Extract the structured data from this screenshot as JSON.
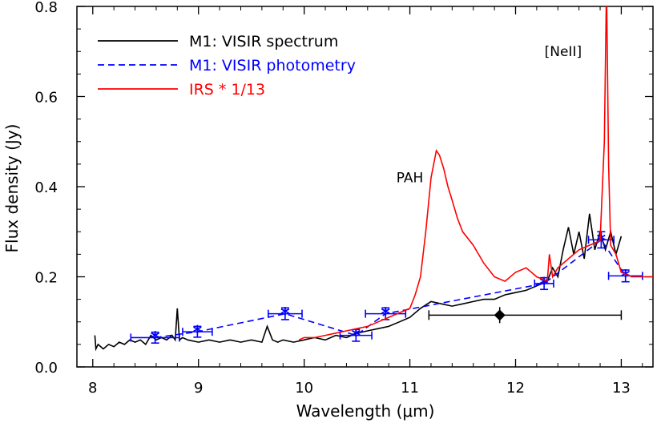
{
  "chart_data": {
    "type": "line",
    "xlabel": "Wavelength (μm)",
    "ylabel": "Flux density (Jy)",
    "xlim": [
      7.85,
      13.3
    ],
    "ylim": [
      0.0,
      0.8
    ],
    "x_ticks": [
      "8",
      "9",
      "10",
      "11",
      "12",
      "13"
    ],
    "y_ticks": [
      "0.0",
      "0.2",
      "0.4",
      "0.6",
      "0.8"
    ],
    "legend_position": "top-left",
    "grid": false,
    "colors": {
      "spectrum": "#000000",
      "photometry": "#0000ff",
      "irs": "#ff0000"
    },
    "annotations": [
      {
        "text": "PAH",
        "x": 11.0,
        "y": 0.41
      },
      {
        "text": "[NeII]",
        "x": 12.45,
        "y": 0.69
      }
    ],
    "series": [
      {
        "name": "M1: VISIR spectrum",
        "style": "solid",
        "color": "#000000",
        "x": [
          8.02,
          8.03,
          8.05,
          8.1,
          8.15,
          8.2,
          8.25,
          8.3,
          8.35,
          8.4,
          8.45,
          8.5,
          8.55,
          8.6,
          8.65,
          8.7,
          8.75,
          8.78,
          8.8,
          8.82,
          8.85,
          8.9,
          9.0,
          9.1,
          9.2,
          9.3,
          9.4,
          9.5,
          9.6,
          9.65,
          9.7,
          9.75,
          9.8,
          9.9,
          10.0,
          10.1,
          10.2,
          10.3,
          10.4,
          10.5,
          10.6,
          10.7,
          10.8,
          10.9,
          11.0,
          11.1,
          11.2,
          11.3,
          11.4,
          11.5,
          11.6,
          11.7,
          11.8,
          11.9,
          12.0,
          12.1,
          12.2,
          12.3,
          12.35,
          12.4,
          12.45,
          12.5,
          12.55,
          12.6,
          12.65,
          12.7,
          12.75,
          12.8,
          12.85,
          12.9,
          12.95,
          13.0
        ],
        "y": [
          0.07,
          0.04,
          0.05,
          0.04,
          0.05,
          0.045,
          0.055,
          0.05,
          0.06,
          0.055,
          0.06,
          0.05,
          0.07,
          0.06,
          0.065,
          0.06,
          0.07,
          0.06,
          0.13,
          0.06,
          0.065,
          0.06,
          0.055,
          0.06,
          0.055,
          0.06,
          0.055,
          0.06,
          0.055,
          0.09,
          0.06,
          0.055,
          0.06,
          0.055,
          0.06,
          0.065,
          0.06,
          0.07,
          0.065,
          0.075,
          0.08,
          0.085,
          0.09,
          0.1,
          0.11,
          0.13,
          0.145,
          0.14,
          0.135,
          0.14,
          0.145,
          0.15,
          0.15,
          0.16,
          0.165,
          0.17,
          0.18,
          0.19,
          0.22,
          0.2,
          0.26,
          0.31,
          0.25,
          0.3,
          0.24,
          0.34,
          0.26,
          0.3,
          0.26,
          0.3,
          0.25,
          0.29
        ]
      },
      {
        "name": "M1: VISIR photometry",
        "style": "dashed",
        "color": "#0000ff",
        "x": [
          8.59,
          8.99,
          9.82,
          10.49,
          10.77,
          12.27,
          12.81,
          13.04
        ],
        "y": [
          0.065,
          0.078,
          0.118,
          0.07,
          0.118,
          0.185,
          0.282,
          0.202
        ],
        "xerr": [
          0.23,
          0.14,
          0.16,
          0.15,
          0.19,
          0.09,
          0.12,
          0.16
        ],
        "yerr": [
          0.012,
          0.012,
          0.013,
          0.013,
          0.013,
          0.013,
          0.018,
          0.013
        ]
      },
      {
        "name": "IRS * 1/13",
        "style": "solid",
        "color": "#ff0000",
        "x": [
          9.95,
          10.0,
          10.1,
          10.2,
          10.3,
          10.4,
          10.5,
          10.6,
          10.7,
          10.8,
          10.9,
          11.0,
          11.05,
          11.1,
          11.15,
          11.2,
          11.25,
          11.28,
          11.32,
          11.36,
          11.4,
          11.45,
          11.5,
          11.6,
          11.7,
          11.8,
          11.9,
          12.0,
          12.1,
          12.2,
          12.3,
          12.32,
          12.35,
          12.4,
          12.5,
          12.6,
          12.7,
          12.8,
          12.84,
          12.86,
          12.88,
          12.9,
          12.95,
          13.0,
          13.1,
          13.2,
          13.3
        ],
        "y": [
          0.06,
          0.065,
          0.065,
          0.07,
          0.075,
          0.08,
          0.085,
          0.09,
          0.1,
          0.11,
          0.12,
          0.13,
          0.16,
          0.2,
          0.3,
          0.42,
          0.48,
          0.47,
          0.44,
          0.4,
          0.37,
          0.33,
          0.3,
          0.27,
          0.23,
          0.2,
          0.19,
          0.21,
          0.22,
          0.2,
          0.19,
          0.25,
          0.2,
          0.22,
          0.24,
          0.26,
          0.27,
          0.28,
          0.5,
          0.85,
          0.45,
          0.27,
          0.25,
          0.21,
          0.2,
          0.2,
          0.2
        ]
      },
      {
        "name": "",
        "style": "errorbar",
        "color": "#000000",
        "x": [
          11.85
        ],
        "y": [
          0.115
        ],
        "xerr_low": [
          0.67
        ],
        "xerr_high": [
          1.15
        ]
      }
    ]
  }
}
